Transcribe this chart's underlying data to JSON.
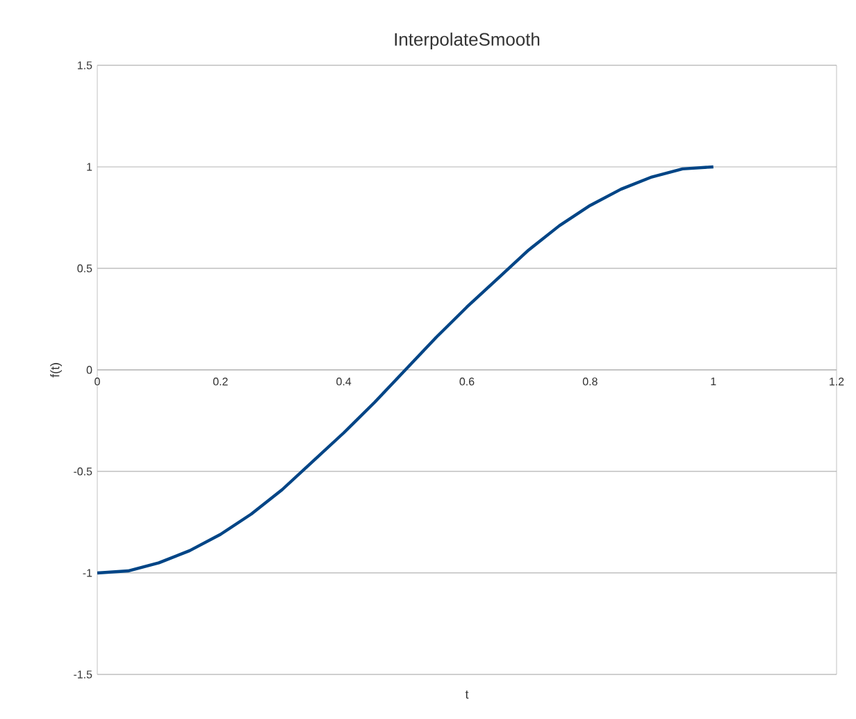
{
  "chart_data": {
    "type": "line",
    "title": "InterpolateSmooth",
    "xlabel": "t",
    "ylabel": "f(t)",
    "x": [
      0,
      0.05,
      0.1,
      0.15,
      0.2,
      0.25,
      0.3,
      0.35,
      0.4,
      0.45,
      0.5,
      0.55,
      0.6,
      0.65,
      0.7,
      0.75,
      0.8,
      0.85,
      0.9,
      0.95,
      1
    ],
    "series": [
      {
        "color": "#004586",
        "values": [
          -1,
          -0.99,
          -0.95,
          -0.89,
          -0.81,
          -0.71,
          -0.59,
          -0.45,
          -0.31,
          -0.16,
          0,
          0.16,
          0.31,
          0.45,
          0.59,
          0.71,
          0.81,
          0.89,
          0.95,
          0.99,
          1
        ]
      }
    ],
    "xlim": [
      0,
      1.2
    ],
    "ylim": [
      -1.5,
      1.5
    ],
    "xticks": [
      0,
      0.2,
      0.4,
      0.6,
      0.8,
      1,
      1.2
    ],
    "yticks": [
      -1.5,
      -1,
      -0.5,
      0,
      0.5,
      1,
      1.5
    ],
    "grid": "y"
  }
}
